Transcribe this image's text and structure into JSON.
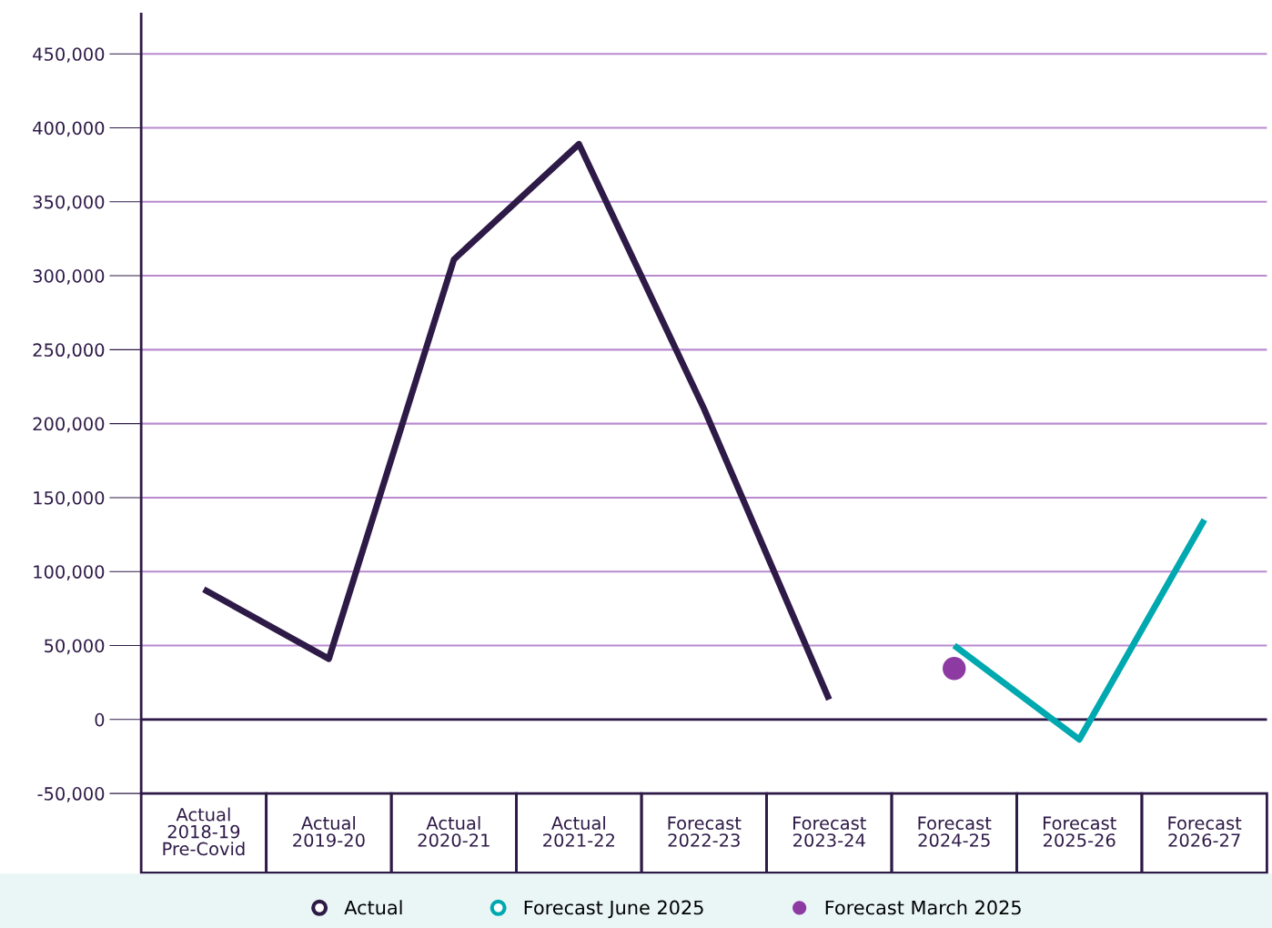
{
  "chart_data": {
    "type": "line",
    "categories": [
      "Actual\n2018-19\nPre-Covid",
      "Actual\n2019-20",
      "Actual\n2020-21",
      "Actual\n2021-22",
      "Forecast\n2022-23",
      "Forecast\n2023-24",
      "Forecast\n2024-25",
      "Forecast\n2025-26",
      "Forecast\n2026-27"
    ],
    "series": [
      {
        "name": "Actual",
        "color": "#2e1a47",
        "values": [
          88000,
          41000,
          311000,
          389000,
          210000,
          13500,
          null,
          null,
          null
        ]
      },
      {
        "name": "Forecast June 2025",
        "color": "#00a8b0",
        "values": [
          null,
          null,
          null,
          null,
          null,
          null,
          50000,
          -13500,
          135000
        ]
      },
      {
        "name": "Forecast March 2025",
        "type": "scatter",
        "marker": "circle",
        "color": "#8e3aa3",
        "values": [
          null,
          null,
          null,
          null,
          null,
          null,
          34500,
          null,
          null
        ]
      }
    ],
    "ylim": [
      -50000,
      477000
    ],
    "yticks": [
      {
        "value": -50000,
        "label": "-50,000"
      },
      0,
      {
        "value": 50000,
        "label": "50,000"
      },
      {
        "value": 100000,
        "label": "100,000"
      },
      {
        "value": 150000,
        "label": "150,000"
      },
      {
        "value": 200000,
        "label": "200,000"
      },
      {
        "value": 250000,
        "label": "250,000"
      },
      {
        "value": 300000,
        "label": "300,000"
      },
      {
        "value": 350000,
        "label": "350,000"
      },
      {
        "value": 400000,
        "label": "400,000"
      },
      {
        "value": 450000,
        "label": "450,000"
      }
    ],
    "ref_lines": [
      {
        "axis": "y",
        "value": 0,
        "color": "#2e1a47"
      }
    ],
    "grid": "y",
    "legend": "bottom",
    "line_style": "solid"
  }
}
